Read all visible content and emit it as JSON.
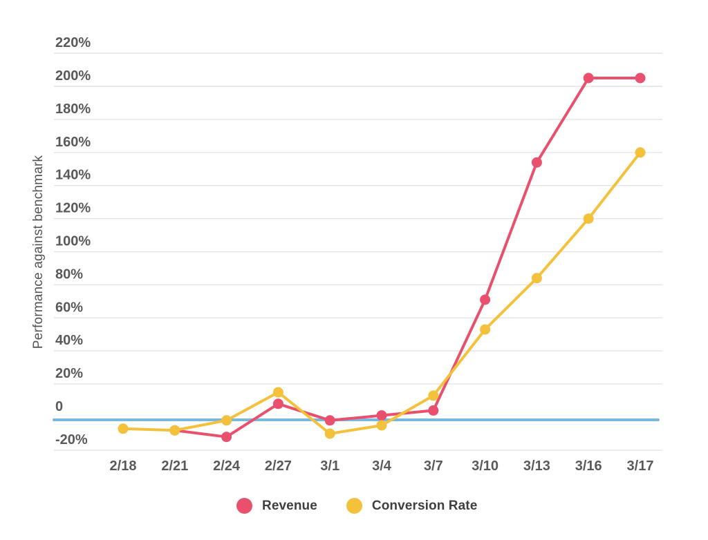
{
  "chart_data": {
    "type": "line",
    "title": "",
    "ylabel": "Performance against benchmark",
    "xlabel": "",
    "categories": [
      "2/18",
      "2/21",
      "2/24",
      "2/27",
      "3/1",
      "3/4",
      "3/7",
      "3/10",
      "3/13",
      "3/16",
      "3/17"
    ],
    "series": [
      {
        "name": "Revenue",
        "color": "#E8506E",
        "values": [
          null,
          -8,
          -12,
          8,
          -2,
          1,
          4,
          71,
          154,
          205,
          205
        ]
      },
      {
        "name": "Conversion Rate",
        "color": "#F3C13B",
        "values": [
          -7,
          -8,
          -2,
          15,
          -10,
          -5,
          13,
          53,
          84,
          120,
          160
        ]
      }
    ],
    "yticks": [
      {
        "label": "220%",
        "value": 220
      },
      {
        "label": "200%",
        "value": 200
      },
      {
        "label": "180%",
        "value": 180
      },
      {
        "label": "160%",
        "value": 160
      },
      {
        "label": "140%",
        "value": 140
      },
      {
        "label": "120%",
        "value": 120
      },
      {
        "label": "100%",
        "value": 100
      },
      {
        "label": "80%",
        "value": 80
      },
      {
        "label": "60%",
        "value": 60
      },
      {
        "label": "40%",
        "value": 40
      },
      {
        "label": "20%",
        "value": 20
      },
      {
        "label": "0",
        "value": 0,
        "gridline": false
      },
      {
        "label": "-20%",
        "value": -20
      }
    ],
    "benchmark_line": {
      "value": 0,
      "color": "#76B8E0"
    },
    "grid": true,
    "legend_position": "bottom",
    "ylim": [
      -20,
      220
    ],
    "colors": {
      "grid": "#E4E4E4",
      "tick_text": "#58595B",
      "legend_text": "#3F3F3F",
      "axis_title": "#545454",
      "background": "#FFFFFF"
    }
  }
}
